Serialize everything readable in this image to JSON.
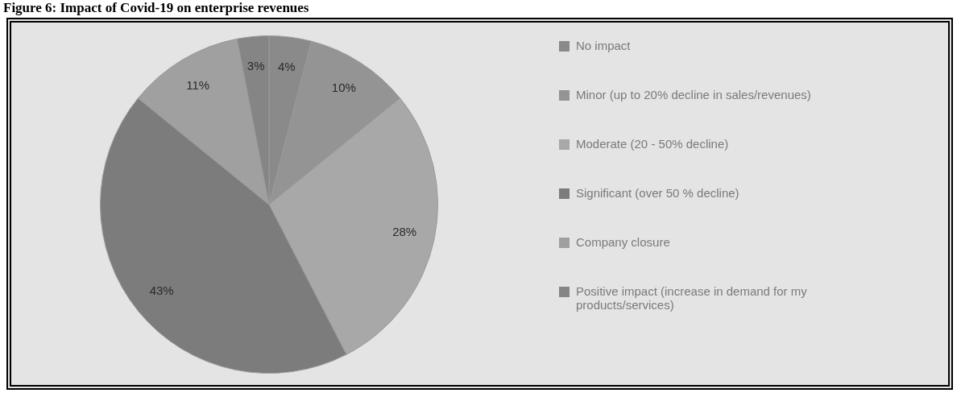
{
  "chart_data": {
    "type": "pie",
    "title": "Figure 6: Impact of Covid-19 on enterprise revenues",
    "categories": [
      "No impact",
      "Minor (up to 20% decline in sales/revenues)",
      "Moderate (20 - 50% decline)",
      "Significant (over 50 % decline)",
      "Company closure",
      "Positive impact (increase in demand for my products/services)"
    ],
    "values": [
      4,
      10,
      28,
      43,
      11,
      3
    ],
    "colors": [
      "#8a8a8a",
      "#949494",
      "#a8a8a8",
      "#7c7c7c",
      "#a0a0a0",
      "#858585"
    ],
    "value_labels": [
      "4%",
      "10%",
      "28%",
      "43%",
      "11%",
      "3%"
    ],
    "legend": "right"
  }
}
